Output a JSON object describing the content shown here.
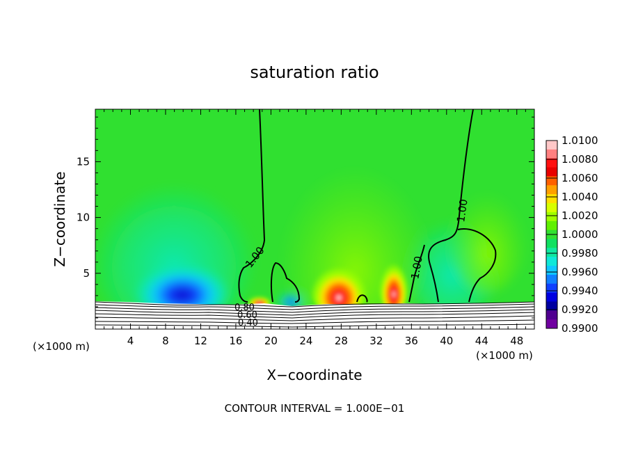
{
  "chart_data": {
    "type": "heatmap",
    "title": "saturation ratio",
    "xlabel": "X−coordinate",
    "ylabel": "Z−coordinate",
    "x_unit": "(×1000 m)",
    "y_unit": "(×1000 m)",
    "xlim": [
      0,
      50
    ],
    "ylim": [
      0,
      19.7
    ],
    "x_ticks": [
      4,
      8,
      12,
      16,
      20,
      24,
      28,
      32,
      36,
      40,
      44,
      48
    ],
    "y_ticks": [
      5,
      10,
      15
    ],
    "footer": "CONTOUR INTERVAL = 1.000E−01",
    "colorbar": {
      "labels": [
        "1.0100",
        "1.0080",
        "1.0060",
        "1.0040",
        "1.0020",
        "1.0000",
        "0.9980",
        "0.9960",
        "0.9940",
        "0.9920",
        "0.9900"
      ],
      "colors": [
        "#ffc8c8",
        "#ff8080",
        "#ff1010",
        "#e80000",
        "#ff6000",
        "#ffa000",
        "#ffe000",
        "#d8ff00",
        "#a0ff00",
        "#60f000",
        "#30e030",
        "#10e060",
        "#10e8a0",
        "#10e8d8",
        "#10c8ff",
        "#1080ff",
        "#1040ff",
        "#0000e0",
        "#0000a0",
        "#500090",
        "#7000a0"
      ]
    },
    "background_color": "#30e030",
    "contour_labels": [
      "1.00",
      "1.00",
      "1.00",
      "0.80",
      "0.60",
      "0.40"
    ],
    "features": [
      {
        "kind": "low",
        "x": 10.5,
        "z": 3.0,
        "value": 0.993
      },
      {
        "kind": "high",
        "x": 27.5,
        "z": 3.5,
        "value": 1.009
      },
      {
        "kind": "high",
        "x": 33.5,
        "z": 4.0,
        "value": 1.008
      },
      {
        "kind": "high",
        "x": 18.5,
        "z": 2.8,
        "value": 1.006
      },
      {
        "kind": "low",
        "x": 22.0,
        "z": 2.6,
        "value": 0.994
      }
    ]
  }
}
